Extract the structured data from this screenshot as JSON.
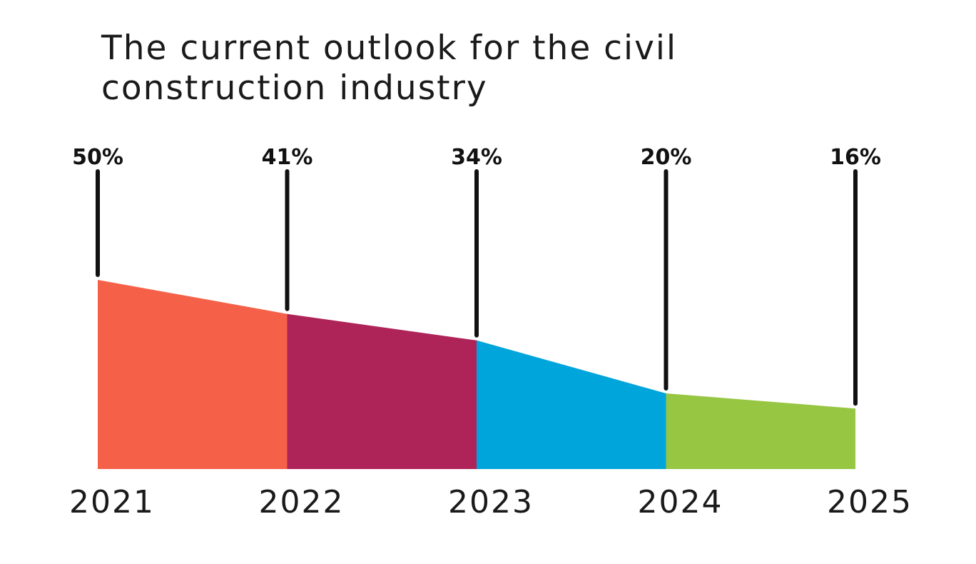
{
  "chart_data": {
    "type": "area",
    "title": "The current outlook for the civil construction industry",
    "categories": [
      "2021",
      "2022",
      "2023",
      "2024",
      "2025"
    ],
    "values": [
      50,
      41,
      34,
      20,
      16
    ],
    "value_labels": [
      "50%",
      "41%",
      "34%",
      "20%",
      "16%"
    ],
    "ylim": [
      0,
      50
    ],
    "segment_colors": [
      "#f46148",
      "#ae2358",
      "#00a5dc",
      "#97c643"
    ],
    "leader_line_color": "#111111",
    "grid": false,
    "legend": "none"
  }
}
